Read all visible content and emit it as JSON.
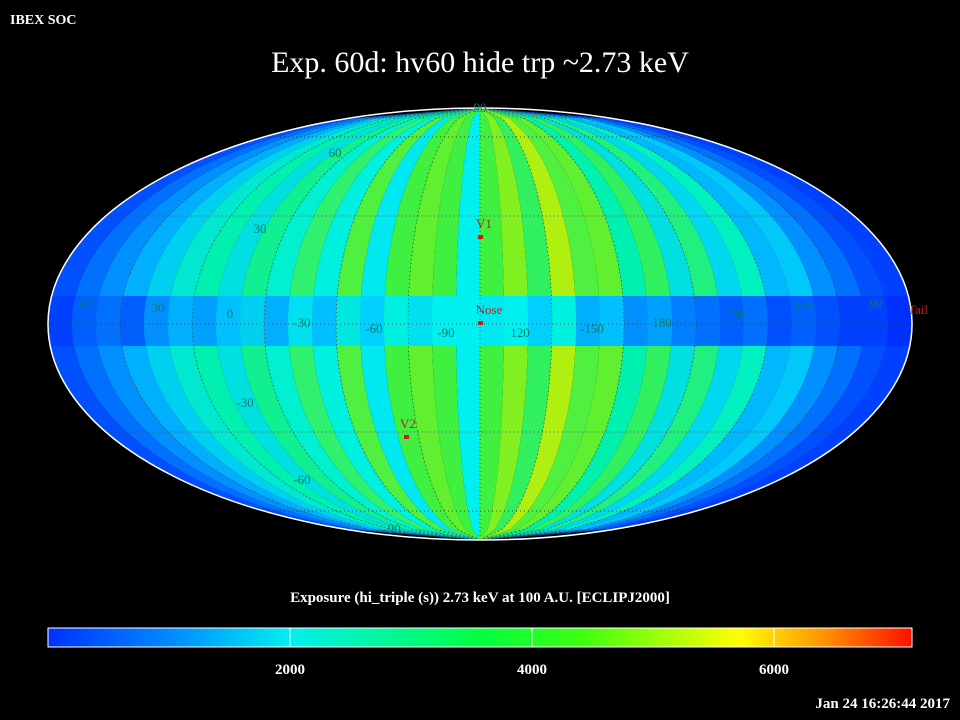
{
  "header": {
    "source": "IBEX SOC",
    "title": "Exp.   60d: hv60 hide trp ~2.73 keV",
    "timestamp": "Jan 24 16:26:44 2017"
  },
  "map": {
    "lon_labels": [
      "60",
      "30",
      "0",
      "-30",
      "-60",
      "-90",
      "120",
      "-150",
      "180",
      "150",
      "120",
      "90"
    ],
    "lat_labels": [
      "90",
      "60",
      "30",
      "-30",
      "-60",
      "-90"
    ],
    "markers": [
      "V1",
      "Nose",
      "V2",
      "Tail"
    ]
  },
  "colorbar": {
    "label": "Exposure (hi_triple (s))  2.73 keV at 100 A.U. [ECLIPJ2000]",
    "range": [
      0,
      7140
    ],
    "ticks": [
      2000,
      4000,
      6000
    ]
  }
}
